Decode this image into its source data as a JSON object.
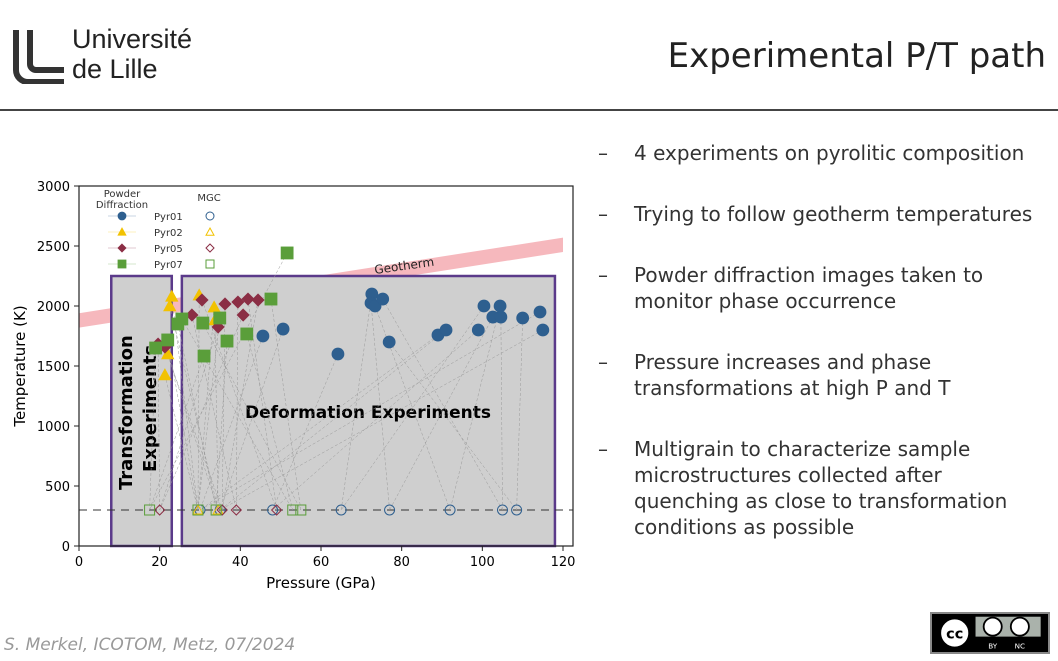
{
  "header": {
    "logo_line1": "Université",
    "logo_line2": "de Lille",
    "title": "Experimental P/T path"
  },
  "bullets": [
    "4 experiments on pyrolitic composition",
    "Trying to follow geotherm temperatures",
    "Powder diffraction images taken to monitor phase occurrence",
    "Pressure increases and phase transformations at high P and T",
    "Multigrain to characterize sample microstructures collected after quenching as close to transformation conditions as possible"
  ],
  "bullet_marker": "–",
  "footer": "S. Merkel, ICOTOM, Metz, 07/2024",
  "license": {
    "cc": "cc",
    "by": "BY",
    "nc": "NC"
  },
  "chart_data": {
    "type": "scatter",
    "xlabel": "Pressure (GPa)",
    "ylabel": "Temperature (K)",
    "xlim": [
      0,
      120
    ],
    "ylim": [
      0,
      3000
    ],
    "xticks": [
      "0",
      "20",
      "40",
      "60",
      "80",
      "100",
      "120"
    ],
    "yticks": [
      "0",
      "500",
      "1000",
      "1500",
      "2000",
      "2500",
      "3000"
    ],
    "legend": {
      "placement": "top-left",
      "col1_title": "Powder Diffraction",
      "col2_title": "MGC"
    },
    "quench_temperature": 300,
    "geotherm": {
      "label": "Geotherm",
      "p": [
        0,
        120
      ],
      "t": [
        1880,
        2510
      ],
      "color": "#f4a6ad"
    },
    "regions": [
      {
        "label": "Transformation Experiments",
        "p": [
          8,
          23
        ],
        "t": [
          0,
          2250
        ]
      },
      {
        "label": "Deformation Experiments",
        "p": [
          25.5,
          118
        ],
        "t": [
          0,
          2250
        ]
      }
    ],
    "series": [
      {
        "name": "Pyr01",
        "color": "#2e5f8f",
        "marker": "circle",
        "powder": [
          [
            45.6,
            1750
          ],
          [
            50.6,
            1808
          ],
          [
            64.2,
            1600
          ],
          [
            72.6,
            2100
          ],
          [
            72.4,
            2025
          ],
          [
            73.4,
            2000
          ],
          [
            75.3,
            2058
          ],
          [
            76.9,
            1700
          ],
          [
            89,
            1758
          ],
          [
            91,
            1800
          ],
          [
            99,
            1800
          ],
          [
            100.4,
            2000
          ],
          [
            102.6,
            1908
          ],
          [
            104.4,
            2000
          ],
          [
            104.6,
            1908
          ],
          [
            110,
            1900
          ],
          [
            114.3,
            1950
          ],
          [
            115,
            1800
          ]
        ],
        "mgc": [
          [
            30,
            300
          ],
          [
            35,
            300
          ],
          [
            48,
            300
          ],
          [
            65,
            300
          ],
          [
            77,
            300
          ],
          [
            92,
            300
          ],
          [
            105,
            300
          ],
          [
            108.5,
            300
          ]
        ]
      },
      {
        "name": "Pyr02",
        "color": "#f2c200",
        "marker": "triangle",
        "powder": [
          [
            21.3,
            1425
          ],
          [
            22,
            1600
          ],
          [
            23,
            2080
          ],
          [
            22.5,
            2000
          ],
          [
            29.8,
            2090
          ],
          [
            33.7,
            1883
          ],
          [
            33.5,
            1990
          ]
        ],
        "mgc": [
          [
            29.5,
            300
          ],
          [
            34.5,
            300
          ]
        ]
      },
      {
        "name": "Pyr05",
        "color": "#8b2e45",
        "marker": "diamond",
        "powder": [
          [
            19.6,
            1683
          ],
          [
            21.3,
            1658
          ],
          [
            28,
            1925
          ],
          [
            30.5,
            2050
          ],
          [
            34.5,
            1825
          ],
          [
            36.2,
            2017
          ],
          [
            39.4,
            2033
          ],
          [
            41.9,
            2058
          ],
          [
            40.7,
            1925
          ],
          [
            44.4,
            2050
          ]
        ],
        "mgc": [
          [
            20,
            300
          ],
          [
            35.5,
            300
          ],
          [
            39,
            300
          ],
          [
            49,
            300
          ]
        ]
      },
      {
        "name": "Pyr07",
        "color": "#5a9e3a",
        "marker": "square",
        "powder": [
          [
            19,
            1650
          ],
          [
            22,
            1717
          ],
          [
            24.5,
            1850
          ],
          [
            25.5,
            1892
          ],
          [
            30.7,
            1858
          ],
          [
            31,
            1583
          ],
          [
            34.9,
            1900
          ],
          [
            36.7,
            1708
          ],
          [
            41.6,
            1767
          ],
          [
            47.6,
            2058
          ],
          [
            51.6,
            2442
          ]
        ],
        "mgc": [
          [
            17.5,
            300
          ],
          [
            29.5,
            300
          ],
          [
            34,
            300
          ],
          [
            53,
            300
          ],
          [
            55,
            300
          ]
        ]
      }
    ]
  }
}
